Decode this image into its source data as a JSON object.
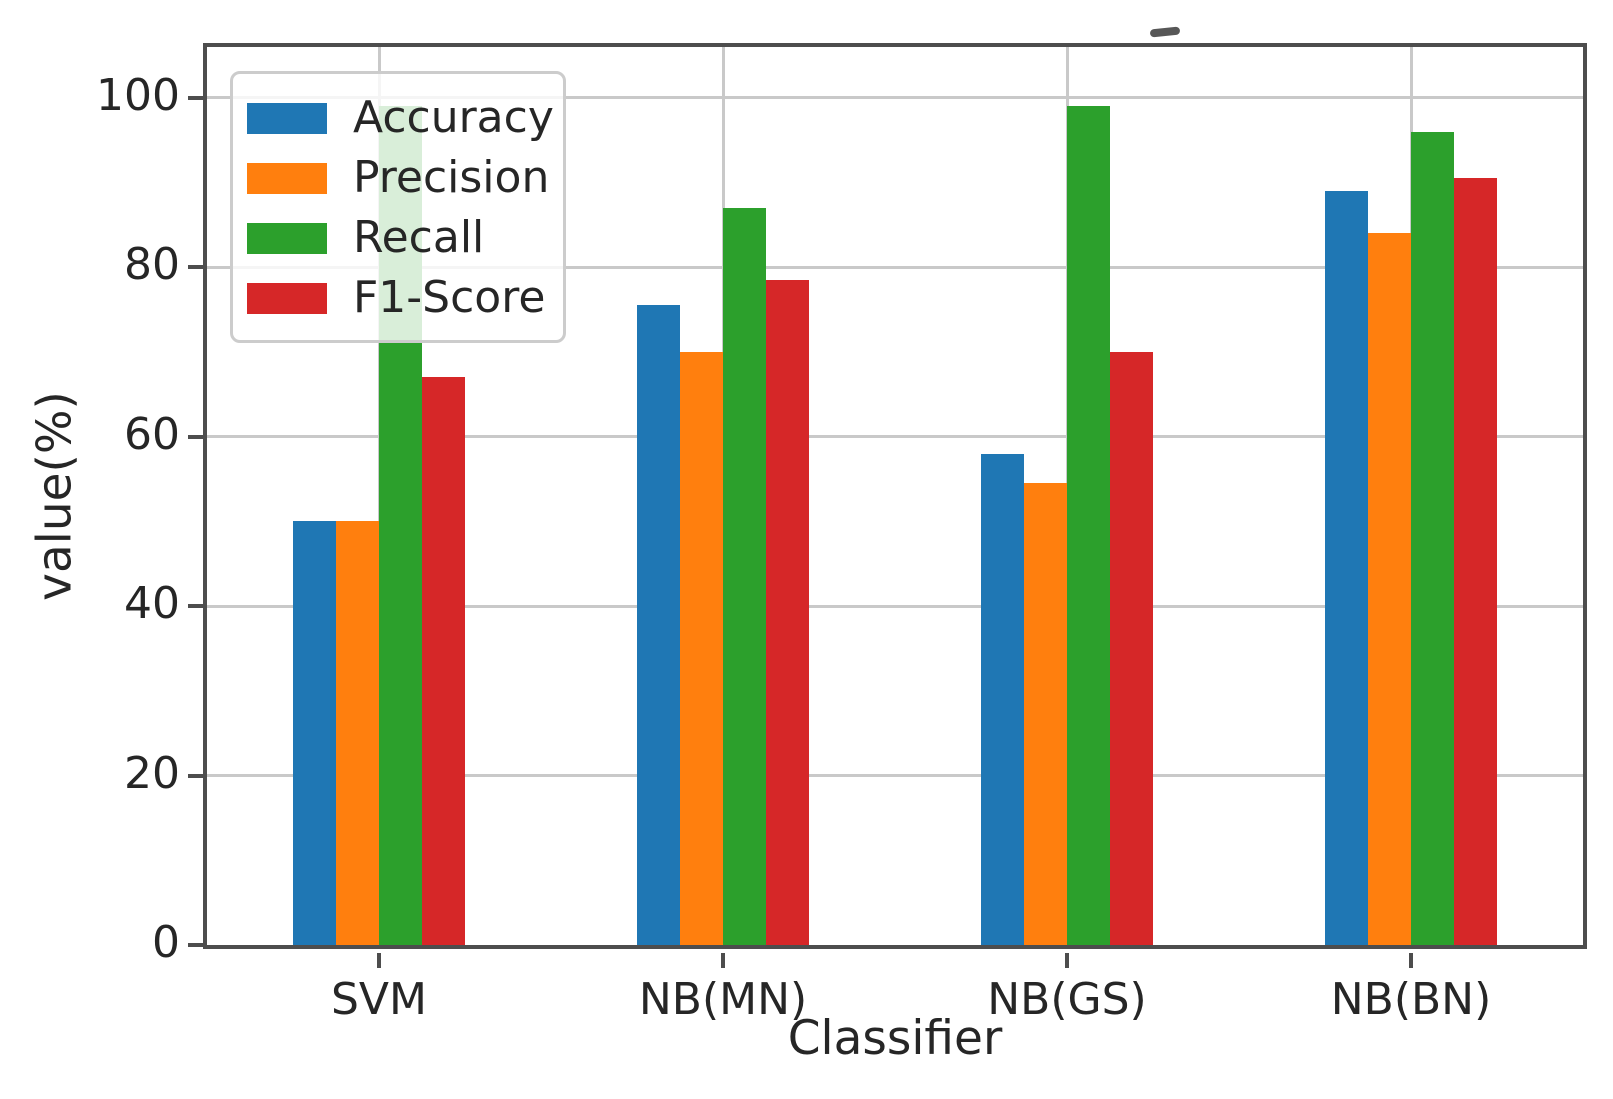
{
  "chart_data": {
    "type": "bar",
    "title": "",
    "xlabel": "Classifier",
    "ylabel": "value(%)",
    "categories": [
      "SVM",
      "NB(MN)",
      "NB(GS)",
      "NB(BN)"
    ],
    "series": [
      {
        "name": "Accuracy",
        "color": "#1f77b4",
        "values": [
          50,
          75.5,
          58,
          89
        ]
      },
      {
        "name": "Precision",
        "color": "#ff7f0e",
        "values": [
          50,
          70,
          54.5,
          84
        ]
      },
      {
        "name": "Recall",
        "color": "#2ca02c",
        "values": [
          99,
          87,
          99,
          96
        ]
      },
      {
        "name": "F1-Score",
        "color": "#d62728",
        "values": [
          67,
          78.5,
          70,
          90.5
        ]
      }
    ],
    "ylim": [
      0,
      106
    ],
    "yticks": [
      0,
      20,
      40,
      60,
      80,
      100
    ],
    "grid": true,
    "grid_color": "#c9c9c9",
    "spine_color": "#4d4d4d",
    "text_color": "#262626",
    "legend_position": "upper-left"
  },
  "figure": {
    "background": "#ffffff",
    "artifact_mark": ""
  }
}
